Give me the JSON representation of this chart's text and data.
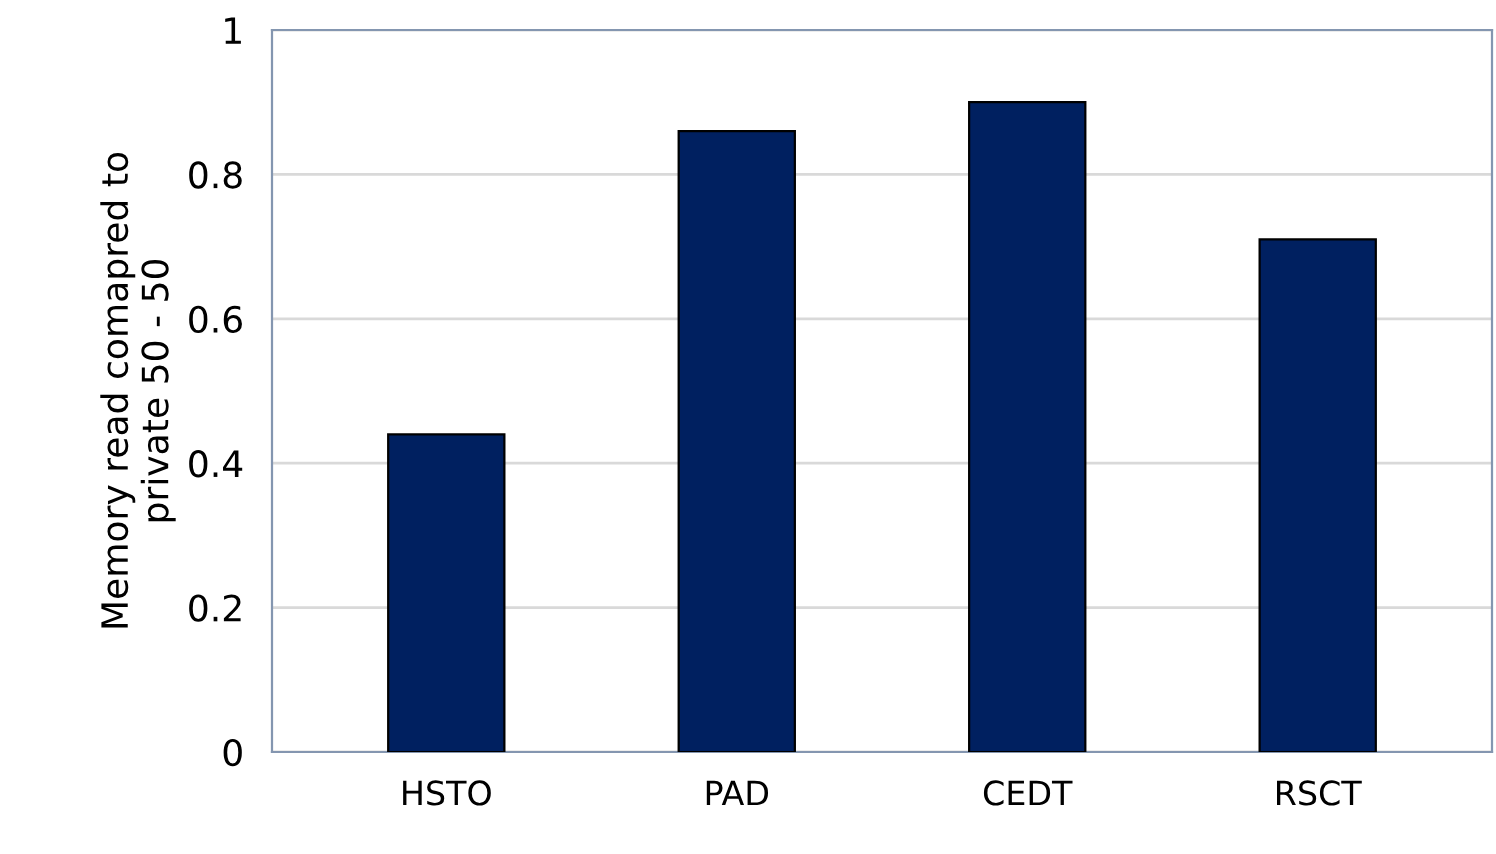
{
  "chart_data": {
    "type": "bar",
    "ylabel": "Memory read comapred to\nprivate 50 - 50",
    "categories": [
      "HSTO",
      "PAD",
      "CEDT",
      "RSCT"
    ],
    "values": [
      0.44,
      0.86,
      0.9,
      0.71
    ],
    "color": "#002060",
    "ylim": [
      0,
      1
    ],
    "yticks": [
      0,
      0.2,
      0.4,
      0.6,
      0.8,
      1
    ],
    "grid": "y",
    "legend": false
  }
}
